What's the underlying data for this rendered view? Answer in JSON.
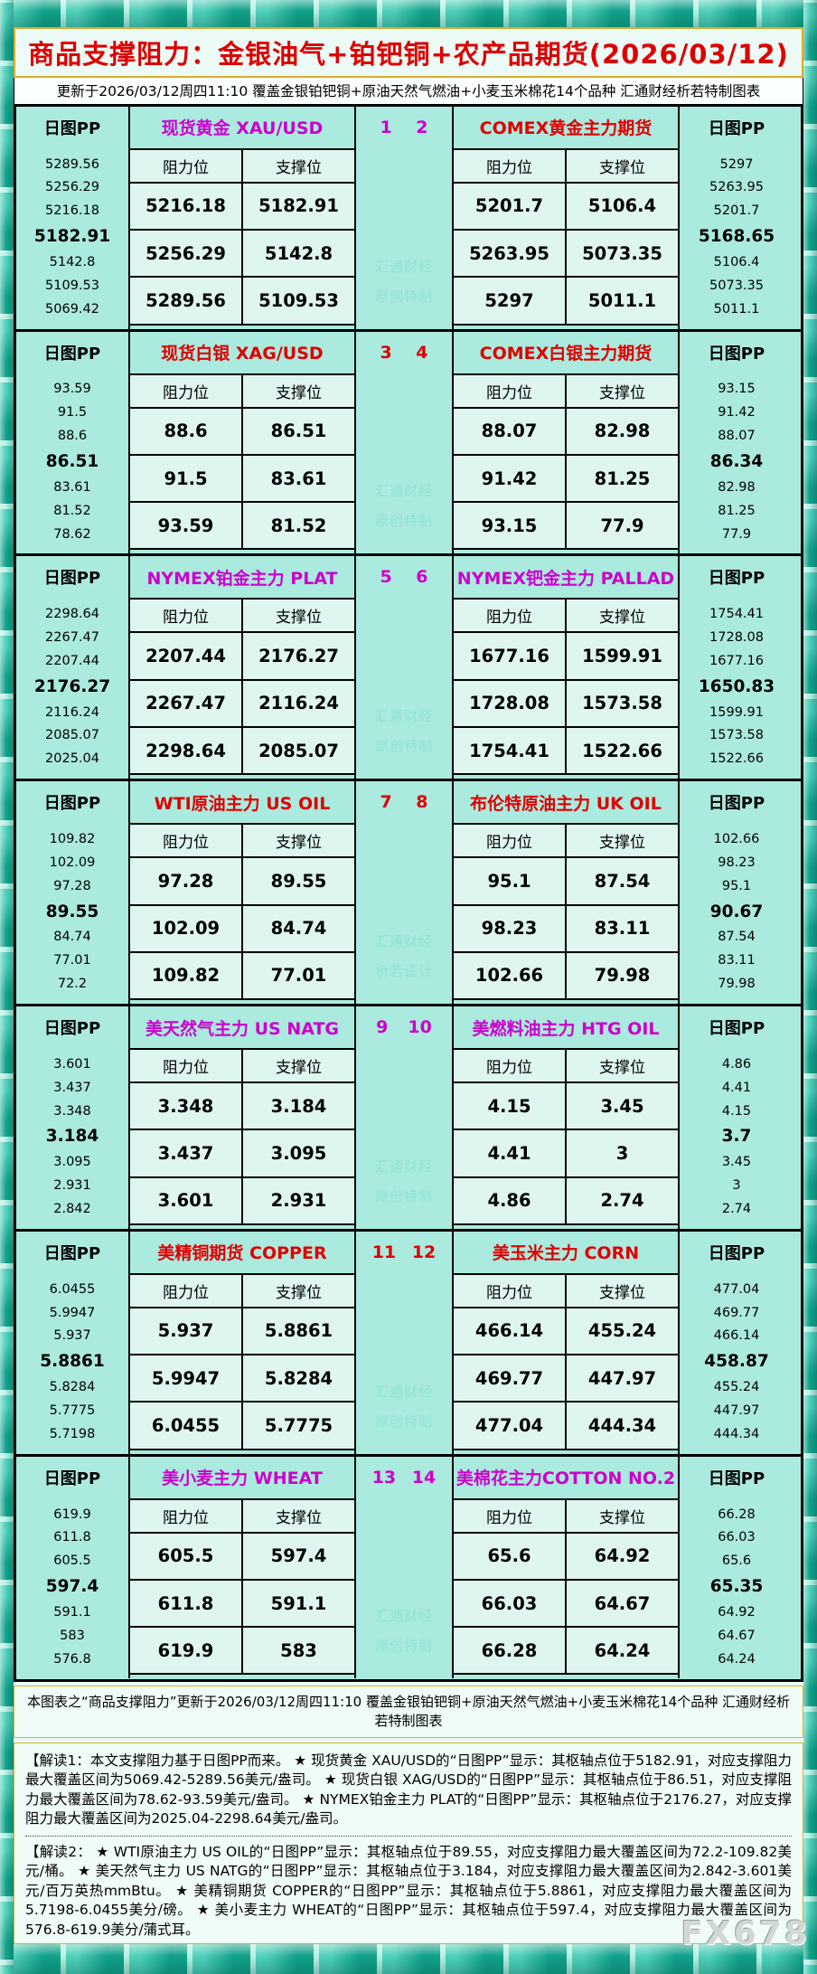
{
  "title": "商品支撑阻力：金银油气+铂钯铜+农产品期货(2026/03/12)",
  "subtitle": "更新于2026/03/12周四11:10 覆盖金银铂钯铜+原油天然气燃油+小麦玉米棉花14个品种 汇通财经析若特制图表",
  "labels": {
    "pp": "日图PP",
    "resistance": "阻力位",
    "support": "支撑位"
  },
  "colors": {
    "red": "#dd0000",
    "magenta": "#cc00cc"
  },
  "footer_note": "本图表之“商品支撑阻力”更新于2026/03/12周四11:10 覆盖金银铂钯铜+原油天然气燃油+小麦玉米棉花14个品种 汇通财经析若特制图表",
  "notes1": "【解读1：本文支撑阻力基于日图PP而来。 ★ 现货黄金 XAU/USD的“日图PP”显示：其枢轴点位于5182.91，对应支撑阻力最大覆盖区间为5069.42-5289.56美元/盎司。 ★ 现货白银 XAG/USD的“日图PP”显示：其枢轴点位于86.51，对应支撑阻力最大覆盖区间为78.62-93.59美元/盎司。 ★ NYMEX铂金主力 PLAT的“日图PP”显示：其枢轴点位于2176.27，对应支撑阻力最大覆盖区间为2025.04-2298.64美元/盎司。",
  "notes2": "【解读2： ★ WTI原油主力 US OIL的“日图PP”显示：其枢轴点位于89.55，对应支撑阻力最大覆盖区间为72.2-109.82美元/桶。 ★ 美天然气主力 US NATG的“日图PP”显示：其枢轴点位于3.184，对应支撑阻力最大覆盖区间为2.842-3.601美元/百万英热mmBtu。 ★ 美精铜期货 COPPER的“日图PP”显示：其枢轴点位于5.8861，对应支撑阻力最大覆盖区间为5.7198-6.0455美分/磅。 ★ 美小麦主力 WHEAT的“日图PP”显示：其枢轴点位于597.4，对应支撑阻力最大覆盖区间为576.8-619.9美分/蒲式耳。",
  "fx_watermark": "FX678",
  "chart_data": {
    "type": "table",
    "title": "商品支撑阻力：金银油气+铂钯铜+农产品期货(2026/03/12)",
    "updated": "2026/03/12周四11:10",
    "columns": [
      "阻力位",
      "支撑位"
    ],
    "groups": [
      {
        "page_nums": [
          "1",
          "2"
        ],
        "accent_left": "magenta",
        "accent_right": "red",
        "accent_nums": "magenta",
        "watermark": [
          "汇通财经",
          "原创特制"
        ],
        "left": {
          "name": "现货黄金 XAU/USD",
          "pp_ladder": [
            "5289.56",
            "5256.29",
            "5216.18",
            "5182.91",
            "5142.8",
            "5109.53",
            "5069.42"
          ],
          "rows": [
            [
              "5216.18",
              "5182.91"
            ],
            [
              "5256.29",
              "5142.8"
            ],
            [
              "5289.56",
              "5109.53"
            ]
          ]
        },
        "right": {
          "name": "COMEX黄金主力期货",
          "pp_ladder": [
            "5297",
            "5263.95",
            "5201.7",
            "5168.65",
            "5106.4",
            "5073.35",
            "5011.1"
          ],
          "rows": [
            [
              "5201.7",
              "5106.4"
            ],
            [
              "5263.95",
              "5073.35"
            ],
            [
              "5297",
              "5011.1"
            ]
          ]
        }
      },
      {
        "page_nums": [
          "3",
          "4"
        ],
        "accent_left": "red",
        "accent_right": "red",
        "accent_nums": "red",
        "watermark": [
          "汇通财经",
          "原创特制"
        ],
        "left": {
          "name": "现货白银 XAG/USD",
          "pp_ladder": [
            "93.59",
            "91.5",
            "88.6",
            "86.51",
            "83.61",
            "81.52",
            "78.62"
          ],
          "rows": [
            [
              "88.6",
              "86.51"
            ],
            [
              "91.5",
              "83.61"
            ],
            [
              "93.59",
              "81.52"
            ]
          ]
        },
        "right": {
          "name": "COMEX白银主力期货",
          "pp_ladder": [
            "93.15",
            "91.42",
            "88.07",
            "86.34",
            "82.98",
            "81.25",
            "77.9"
          ],
          "rows": [
            [
              "88.07",
              "82.98"
            ],
            [
              "91.42",
              "81.25"
            ],
            [
              "93.15",
              "77.9"
            ]
          ]
        }
      },
      {
        "page_nums": [
          "5",
          "6"
        ],
        "accent_left": "magenta",
        "accent_right": "magenta",
        "accent_nums": "magenta",
        "watermark": [
          "汇通财经",
          "原创特制"
        ],
        "left": {
          "name": "NYMEX铂金主力 PLAT",
          "pp_ladder": [
            "2298.64",
            "2267.47",
            "2207.44",
            "2176.27",
            "2116.24",
            "2085.07",
            "2025.04"
          ],
          "rows": [
            [
              "2207.44",
              "2176.27"
            ],
            [
              "2267.47",
              "2116.24"
            ],
            [
              "2298.64",
              "2085.07"
            ]
          ]
        },
        "right": {
          "name": "NYMEX钯金主力 PALLAD",
          "pp_ladder": [
            "1754.41",
            "1728.08",
            "1677.16",
            "1650.83",
            "1599.91",
            "1573.58",
            "1522.66"
          ],
          "rows": [
            [
              "1677.16",
              "1599.91"
            ],
            [
              "1728.08",
              "1573.58"
            ],
            [
              "1754.41",
              "1522.66"
            ]
          ]
        }
      },
      {
        "page_nums": [
          "7",
          "8"
        ],
        "accent_left": "red",
        "accent_right": "red",
        "accent_nums": "red",
        "watermark": [
          "汇通财经",
          "析若设计"
        ],
        "left": {
          "name": "WTI原油主力 US OIL",
          "pp_ladder": [
            "109.82",
            "102.09",
            "97.28",
            "89.55",
            "84.74",
            "77.01",
            "72.2"
          ],
          "rows": [
            [
              "97.28",
              "89.55"
            ],
            [
              "102.09",
              "84.74"
            ],
            [
              "109.82",
              "77.01"
            ]
          ]
        },
        "right": {
          "name": "布伦特原油主力 UK OIL",
          "pp_ladder": [
            "102.66",
            "98.23",
            "95.1",
            "90.67",
            "87.54",
            "83.11",
            "79.98"
          ],
          "rows": [
            [
              "95.1",
              "87.54"
            ],
            [
              "98.23",
              "83.11"
            ],
            [
              "102.66",
              "79.98"
            ]
          ]
        }
      },
      {
        "page_nums": [
          "9",
          "10"
        ],
        "accent_left": "magenta",
        "accent_right": "magenta",
        "accent_nums": "magenta",
        "watermark": [
          "汇通财经",
          "原创特制"
        ],
        "left": {
          "name": "美天然气主力 US NATG",
          "pp_ladder": [
            "3.601",
            "3.437",
            "3.348",
            "3.184",
            "3.095",
            "2.931",
            "2.842"
          ],
          "rows": [
            [
              "3.348",
              "3.184"
            ],
            [
              "3.437",
              "3.095"
            ],
            [
              "3.601",
              "2.931"
            ]
          ]
        },
        "right": {
          "name": "美燃料油主力 HTG OIL",
          "pp_ladder": [
            "4.86",
            "4.41",
            "4.15",
            "3.7",
            "3.45",
            "3",
            "2.74"
          ],
          "rows": [
            [
              "4.15",
              "3.45"
            ],
            [
              "4.41",
              "3"
            ],
            [
              "4.86",
              "2.74"
            ]
          ]
        }
      },
      {
        "page_nums": [
          "11",
          "12"
        ],
        "accent_left": "red",
        "accent_right": "red",
        "accent_nums": "red",
        "watermark": [
          "汇通财经",
          "原创特制"
        ],
        "left": {
          "name": "美精铜期货 COPPER",
          "pp_ladder": [
            "6.0455",
            "5.9947",
            "5.937",
            "5.8861",
            "5.8284",
            "5.7775",
            "5.7198"
          ],
          "rows": [
            [
              "5.937",
              "5.8861"
            ],
            [
              "5.9947",
              "5.8284"
            ],
            [
              "6.0455",
              "5.7775"
            ]
          ]
        },
        "right": {
          "name": "美玉米主力 CORN",
          "pp_ladder": [
            "477.04",
            "469.77",
            "466.14",
            "458.87",
            "455.24",
            "447.97",
            "444.34"
          ],
          "rows": [
            [
              "466.14",
              "455.24"
            ],
            [
              "469.77",
              "447.97"
            ],
            [
              "477.04",
              "444.34"
            ]
          ]
        }
      },
      {
        "page_nums": [
          "13",
          "14"
        ],
        "accent_left": "magenta",
        "accent_right": "magenta",
        "accent_nums": "magenta",
        "watermark": [
          "汇通财经",
          "原创特制"
        ],
        "left": {
          "name": "美小麦主力 WHEAT",
          "pp_ladder": [
            "619.9",
            "611.8",
            "605.5",
            "597.4",
            "591.1",
            "583",
            "576.8"
          ],
          "rows": [
            [
              "605.5",
              "597.4"
            ],
            [
              "611.8",
              "591.1"
            ],
            [
              "619.9",
              "583"
            ]
          ]
        },
        "right": {
          "name": "美棉花主力COTTON NO.2",
          "pp_ladder": [
            "66.28",
            "66.03",
            "65.6",
            "65.35",
            "64.92",
            "64.67",
            "64.24"
          ],
          "rows": [
            [
              "65.6",
              "64.92"
            ],
            [
              "66.03",
              "64.67"
            ],
            [
              "66.28",
              "64.24"
            ]
          ]
        }
      }
    ]
  }
}
